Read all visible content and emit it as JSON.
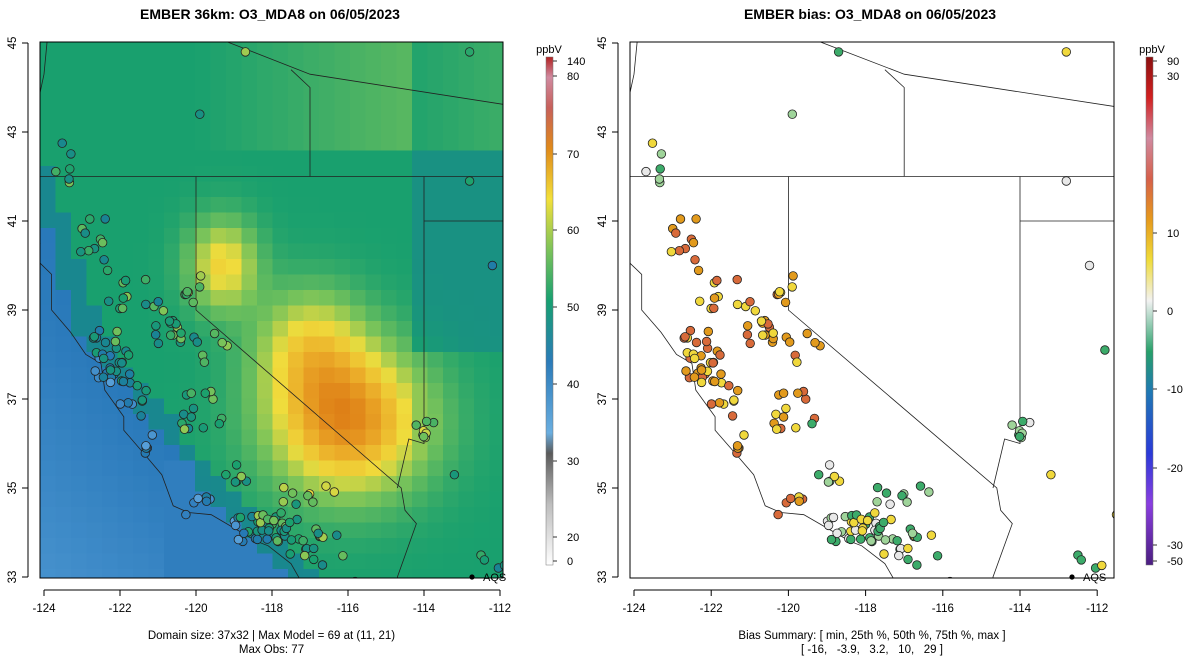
{
  "left_panel": {
    "title": "EMBER 36km: O3_MDA8 on 06/05/2023",
    "footer_line1": "Domain size: 37x32 | Max Model = 69 at (11, 21)",
    "footer_line2": "Max Obs: 77",
    "colorbar_unit": "ppbV",
    "colorbar_ticks": [
      "0",
      "20",
      "30",
      "40",
      "50",
      "60",
      "70",
      "80",
      "140"
    ],
    "aqs_label": "AQS"
  },
  "right_panel": {
    "title": "EMBER bias: O3_MDA8 on 06/05/2023",
    "footer_line1": "Bias Summary: [ min, 25th %, 50th %, 75th %, max ]",
    "footer_line2": "[ -16,   -3.9,   3.2,   10,   29 ]",
    "colorbar_unit": "ppbV",
    "colorbar_ticks": [
      "-50",
      "-30",
      "-20",
      "-10",
      "0",
      "10",
      "30",
      "90"
    ],
    "aqs_label": "AQS"
  },
  "axes": {
    "x_ticks": [
      "-124",
      "-122",
      "-120",
      "-118",
      "-116",
      "-114",
      "-112"
    ],
    "y_ticks": [
      "33",
      "35",
      "37",
      "39",
      "41",
      "43",
      "45"
    ],
    "xlim": [
      -124.3,
      -111.7
    ],
    "ylim": [
      32.8,
      45.2
    ]
  },
  "colors": {
    "ocean_blue": "#2c7bb6",
    "green": "#1a9850",
    "yellow": "#f2dd3c",
    "orange": "#e08a1a",
    "bias_neg": "#3cab6a",
    "bias_pos": "#e29a1c"
  },
  "chart_data": {
    "type": "map",
    "panels": [
      {
        "name": "model_ozone",
        "variable": "O3_MDA8",
        "unit": "ppbV",
        "max_model": 69,
        "max_obs": 77,
        "domain_size": "37x32"
      },
      {
        "name": "bias",
        "variable": "O3_MDA8 bias",
        "unit": "ppbV",
        "summary": {
          "min": -16,
          "p25": -3.9,
          "p50": 3.2,
          "p75": 10,
          "max": 29
        }
      }
    ],
    "legend": {
      "marker": "AQS"
    }
  }
}
